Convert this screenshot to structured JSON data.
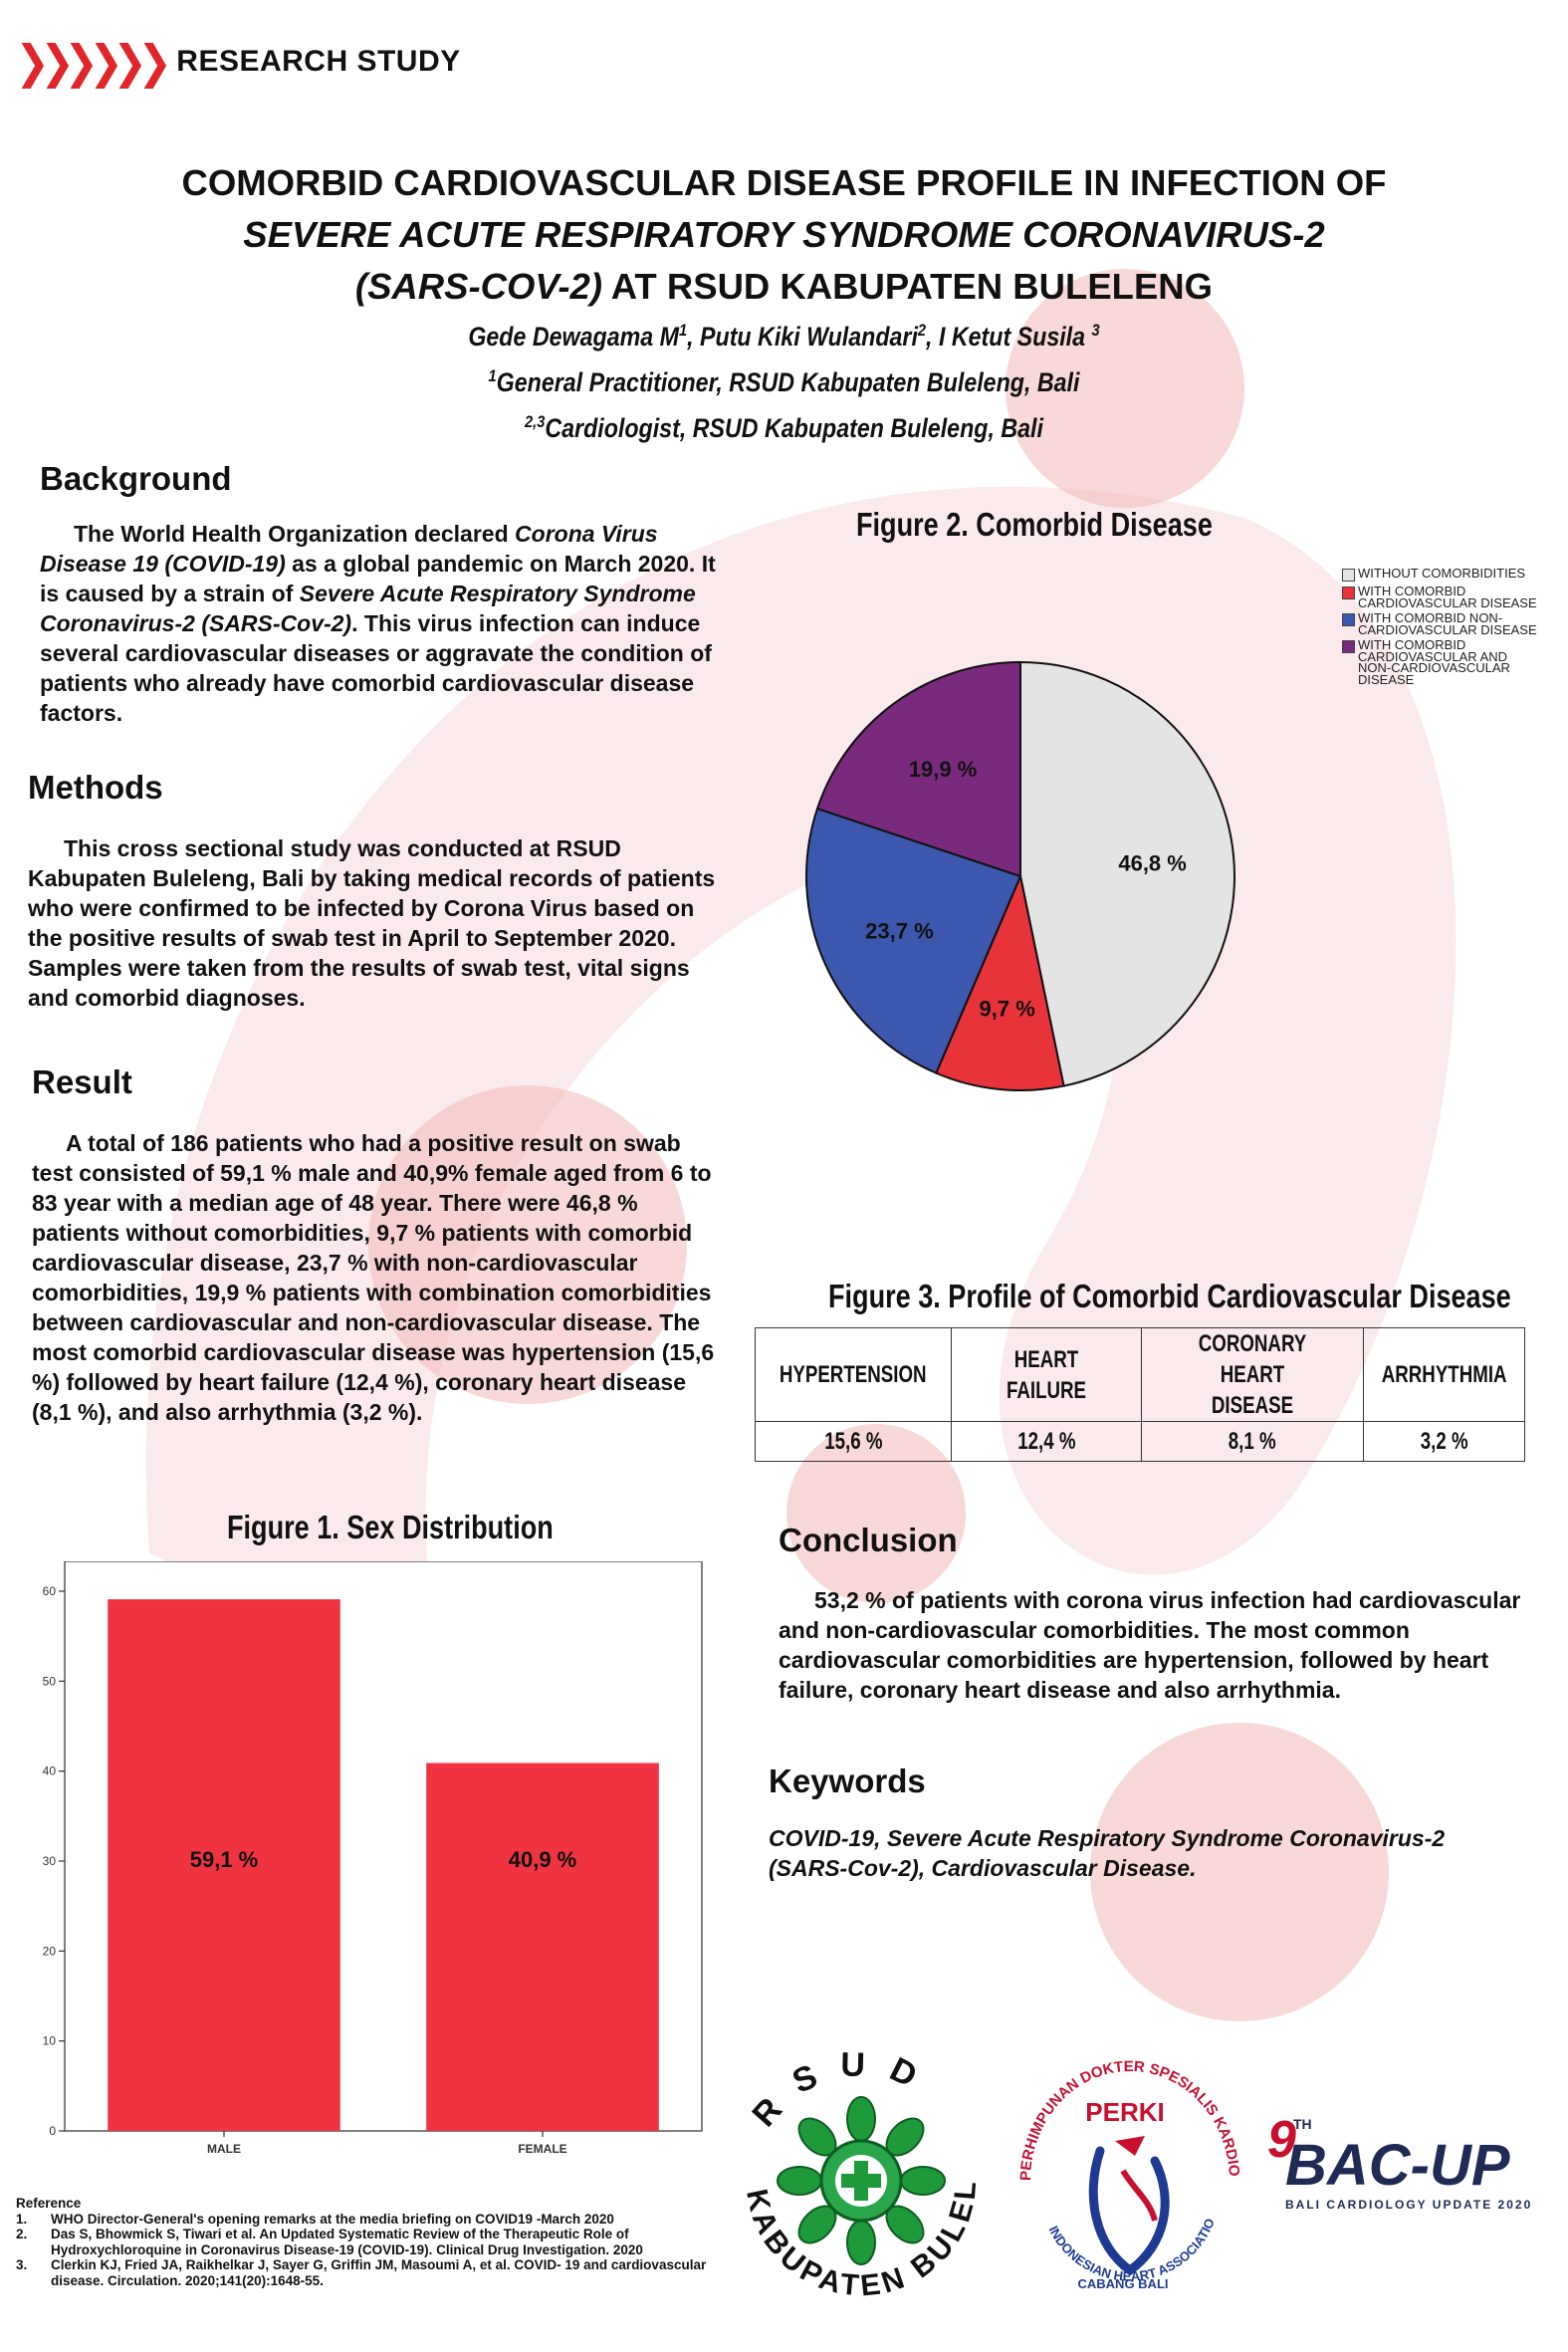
{
  "header": {
    "tag": "RESEARCH STUDY"
  },
  "title": {
    "line1": "COMORBID CARDIOVASCULAR DISEASE PROFILE IN INFECTION OF",
    "line2": "SEVERE ACUTE RESPIRATORY SYNDROME CORONAVIRUS-2",
    "line3_italic": "(SARS-COV-2)",
    "line3_rest": " AT RSUD KABUPATEN BULELENG"
  },
  "authors": {
    "a1": "Gede Dewagama M",
    "a1_sup": "1",
    "a2": ", Putu Kiki Wulandari",
    "a2_sup": "2",
    "a3": ", I Ketut Susila ",
    "a3_sup": "3",
    "aff1_sup": "1",
    "aff1": "General Practitioner, RSUD Kabupaten Buleleng, Bali",
    "aff2_sup": "2,3",
    "aff2": "Cardiologist, RSUD Kabupaten Buleleng, Bali"
  },
  "background": {
    "heading": "Background",
    "t1": "The World Health Organization declared ",
    "t2": "Corona Virus Disease 19 (COVID-19)",
    "t3": " as a global pandemic on March 2020. It is caused by a strain of ",
    "t4": "Severe Acute Respiratory Syndrome Coronavirus-2 (SARS-Cov-2)",
    "t5": ". This virus infection can induce several cardiovascular diseases or aggravate the condition of patients who already have comorbid cardiovascular disease factors."
  },
  "methods": {
    "heading": "Methods",
    "text": "This cross sectional study was conducted at RSUD Kabupaten Buleleng, Bali by taking medical records of patients who were confirmed to be infected by Corona Virus based on the positive results of swab test in April to September 2020. Samples were taken from the results of swab test, vital signs and comorbid diagnoses."
  },
  "result": {
    "heading": "Result",
    "text": "A total of 186 patients who had a positive result on swab test consisted of 59,1 % male and 40,9% female aged from 6 to 83 year with a median age of 48 year. There were 46,8 % patients without comorbidities, 9,7 % patients with comorbid cardiovascular disease, 23,7 % with non-cardiovascular comorbidities, 19,9 % patients with combination comorbidities between cardiovascular and non-cardiovascular disease. The most comorbid cardiovascular disease was hypertension (15,6 %) followed by heart failure (12,4 %), coronary heart disease (8,1 %), and also arrhythmia (3,2 %)."
  },
  "conclusion": {
    "heading": "Conclusion",
    "text": "53,2 % of patients with corona virus infection had cardiovascular and non-cardiovascular comorbidities. The most common cardiovascular comorbidities are hypertension, followed by heart failure, coronary heart disease and also arrhythmia."
  },
  "keywords": {
    "heading": "Keywords",
    "text": "COVID-19, Severe Acute Respiratory Syndrome Coronavirus-2 (SARS-Cov-2), Cardiovascular Disease."
  },
  "chart_data": [
    {
      "type": "pie",
      "title": "Figure 2. Comorbid Disease",
      "labels": [
        "Without comorbidities",
        "With comorbid cardiovascular disease",
        "With comorbid non-cardiovascular disease",
        "With comorbid cardiovascular and non-cardiovascular disease"
      ],
      "values": [
        46.8,
        9.7,
        23.7,
        19.9
      ],
      "value_labels": [
        "46,8 %",
        "9,7 %",
        "23,7 %",
        "19,9 %"
      ],
      "colors": [
        "#e4e4e4",
        "#e8333b",
        "#3b58ae",
        "#7a2a7d"
      ],
      "legend": "top-right"
    },
    {
      "type": "table",
      "title": "Figure 3. Profile of Comorbid Cardiovascular Disease",
      "columns": [
        "HYPERTENSION",
        "HEART FAILURE",
        "CORONARY HEART DISEASE",
        "ARRHYTHMIA"
      ],
      "values": [
        "15,6 %",
        "12,4 %",
        "8,1 %",
        "3,2 %"
      ]
    },
    {
      "type": "bar",
      "title": "Figure 1. Sex Distribution",
      "categories": [
        "MALE",
        "FEMALE"
      ],
      "values": [
        59.1,
        40.9
      ],
      "value_labels": [
        "59,1 %",
        "40,9 %"
      ],
      "ylim": [
        0,
        60
      ],
      "yticks": [
        "0",
        "10",
        "20",
        "30",
        "40",
        "50",
        "60"
      ],
      "color": "#ef3340",
      "xlabel": "",
      "ylabel": ""
    }
  ],
  "references": {
    "heading": "Reference",
    "items": [
      {
        "n": "1.",
        "text": "WHO Director-General's opening remarks at the media briefing on COVID19 -March 2020"
      },
      {
        "n": "2.",
        "text": "Das S, Bhowmick S, Tiwari et al. An Updated Systematic Review of the Therapeutic Role of Hydroxychloroquine in Coronavirus Disease‑19 (COVID‑19). Clinical Drug Investigation. 2020"
      },
      {
        "n": "3.",
        "text": "Clerkin KJ, Fried JA, Raikhelkar J, Sayer G, Griffin JM, Masoumi A, et al. COVID- 19 and cardiovascular disease. Circulation. 2020;141(20):1648-55."
      }
    ]
  },
  "logos": {
    "rsud_top": "RSUD",
    "rsud_bottom": "KABUPATEN BULELENG",
    "perki_name": "PERKI",
    "perki_top": "PERHIMPUNAN DOKTER SPESIALIS KARDIOVASKULER INDONESIA",
    "perki_branch": "CABANG BALI",
    "perki_bottom": "INDONESIAN HEART ASSOCIATION",
    "bacup_num": "9",
    "bacup_sup": "TH",
    "bacup_name": "BAC-UP",
    "bacup_sub": "BALI CARDIOLOGY UPDATE 2020"
  }
}
